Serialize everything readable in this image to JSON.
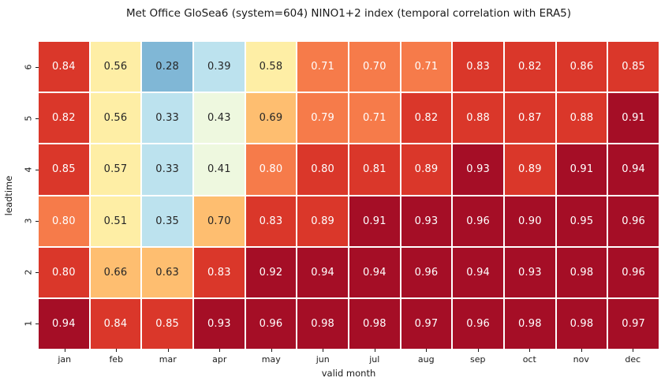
{
  "figure": {
    "title": "Met Office GloSea6 (system=604) NINO1+2 index (temporal correlation with ERA5)"
  },
  "chart_data": {
    "type": "heatmap",
    "title": "Met Office GloSea6 (system=604) NINO1+2 index (temporal correlation with ERA5)",
    "xlabel": "valid month",
    "ylabel": "leadtime",
    "x_categories": [
      "jan",
      "feb",
      "mar",
      "apr",
      "may",
      "jun",
      "jul",
      "aug",
      "sep",
      "oct",
      "nov",
      "dec"
    ],
    "y_categories": [
      "6",
      "5",
      "4",
      "3",
      "2",
      "1"
    ],
    "series": [
      {
        "name": "leadtime 6",
        "values": [
          0.84,
          0.56,
          0.28,
          0.39,
          0.58,
          0.71,
          0.7,
          0.71,
          0.83,
          0.82,
          0.86,
          0.85
        ]
      },
      {
        "name": "leadtime 5",
        "values": [
          0.82,
          0.56,
          0.33,
          0.43,
          0.69,
          0.79,
          0.71,
          0.82,
          0.88,
          0.87,
          0.88,
          0.91
        ]
      },
      {
        "name": "leadtime 4",
        "values": [
          0.85,
          0.57,
          0.33,
          0.41,
          0.8,
          0.8,
          0.81,
          0.89,
          0.93,
          0.89,
          0.91,
          0.94
        ]
      },
      {
        "name": "leadtime 3",
        "values": [
          0.8,
          0.51,
          0.35,
          0.7,
          0.83,
          0.89,
          0.91,
          0.93,
          0.96,
          0.9,
          0.95,
          0.96
        ]
      },
      {
        "name": "leadtime 2",
        "values": [
          0.8,
          0.66,
          0.63,
          0.83,
          0.92,
          0.94,
          0.94,
          0.96,
          0.94,
          0.93,
          0.98,
          0.96
        ]
      },
      {
        "name": "leadtime 1",
        "values": [
          0.94,
          0.84,
          0.85,
          0.93,
          0.96,
          0.98,
          0.98,
          0.97,
          0.96,
          0.98,
          0.98,
          0.97
        ]
      }
    ],
    "value_format": "0.00",
    "grid": true,
    "legend": "none",
    "colormap": {
      "name": "RdYlBu_r discrete 10-bin",
      "vmin": 0,
      "vmax": 1,
      "bin_colors": [
        "#313695",
        "#4a79b7",
        "#80b7d6",
        "#bce2ee",
        "#eef8df",
        "#feeea5",
        "#febe70",
        "#f67b4a",
        "#da372a",
        "#a50e26"
      ],
      "annot_color_dark": "#262626",
      "annot_color_light": "#ffffff"
    },
    "bin_grid": [
      [
        8,
        5,
        2,
        3,
        5,
        7,
        7,
        7,
        8,
        8,
        8,
        8
      ],
      [
        8,
        5,
        3,
        4,
        6,
        7,
        7,
        8,
        8,
        8,
        8,
        9
      ],
      [
        8,
        5,
        3,
        4,
        7,
        8,
        8,
        8,
        9,
        8,
        9,
        9
      ],
      [
        7,
        5,
        3,
        6,
        8,
        8,
        9,
        9,
        9,
        9,
        9,
        9
      ],
      [
        8,
        6,
        6,
        8,
        9,
        9,
        9,
        9,
        9,
        9,
        9,
        9
      ],
      [
        9,
        8,
        8,
        9,
        9,
        9,
        9,
        9,
        9,
        9,
        9,
        9
      ]
    ]
  }
}
